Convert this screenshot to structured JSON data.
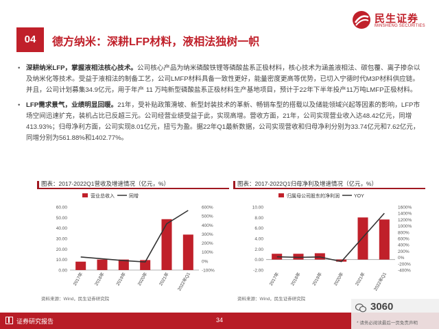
{
  "brand": {
    "cn": "民生证券",
    "en": "MINSHENG SECURITIES",
    "color": "#c0202a"
  },
  "section": {
    "number": "04",
    "title": "德方纳米：深耕LFP材料，液相法独树一帜"
  },
  "bullets": [
    {
      "lead": "深耕纳米LFP，掌握液相法核心技术。",
      "text": "公司核心产品为纳米磷酸铁锂等磷酸盐系正极材料，核心技术为涵盖液相法、碳包覆、离子掺杂以及纳米化等技术。受益于液相法的制备工艺，公司LMFP材料具备一致性更好，能量密度更高等优势，已切入宁德时代M3P材料供应链。并且，公司计划募集34.9亿元，用于年产 11 万吨新型磷酸盐系正极材料生产基地项目，预计于22年下半年投产11万吨LMFP正极材料。"
    },
    {
      "lead": "LFP需求景气，业绩明显回暖。",
      "text": "21年，受补贴政策滑坡、新型封装技术的革新、畅销车型的搭载以及储能领域兴起等因素的影响，LFP市场空间迅速扩充，装机占比已反超三元。公司经营业绩受益于此，实现高增。营收方面，21年，公司实现营业收入达48.42亿元，同增413.93%；归母净利方面，公司实现8.01亿元，扭亏为盈。据22年Q1最新数据，公司实现营收和归母净利分别为33.74亿元和7.62亿元，同增分别为561.88%和1402.77%。"
    }
  ],
  "chart_data": [
    {
      "type": "bar",
      "title": "图表：2017-2022Q1营收及增速情况（亿元，%）",
      "categories": [
        "2017年",
        "2018年",
        "2019年",
        "2020年",
        "2021年",
        "2022年Q1"
      ],
      "series": [
        {
          "name": "营业总收入",
          "type": "bar",
          "axis": "left",
          "values": [
            8.0,
            10.0,
            10.0,
            9.5,
            48.42,
            33.74
          ]
        },
        {
          "name": "同增",
          "type": "line",
          "axis": "right",
          "values": [
            45,
            25,
            5,
            -10,
            413.93,
            561.88
          ]
        }
      ],
      "y_left": {
        "min": 0,
        "max": 60,
        "ticks": [
          "0.00",
          "10.00",
          "20.00",
          "30.00",
          "40.00",
          "50.00",
          "60.00"
        ]
      },
      "y_right": {
        "min": -100,
        "max": 600,
        "ticks": [
          "-100%",
          "0%",
          "100%",
          "200%",
          "300%",
          "400%",
          "500%",
          "600%"
        ]
      },
      "legend": "top",
      "source": "资料来源：Wind，民生证券研究院"
    },
    {
      "type": "bar",
      "title": "图表：2017-2022Q1归母净利及增速情况（亿元，%）",
      "categories": [
        "2017年",
        "2018年",
        "2019年",
        "2020年",
        "2021年",
        "2022年Q1"
      ],
      "series": [
        {
          "name": "归属母公司股东的净利润",
          "type": "bar",
          "axis": "left",
          "values": [
            1.1,
            1.1,
            1.2,
            -0.4,
            8.01,
            7.62
          ]
        },
        {
          "name": "YOY",
          "type": "line",
          "axis": "right",
          "values": [
            20,
            5,
            15,
            -130,
            null,
            1402.77
          ]
        }
      ],
      "y_left": {
        "min": -2,
        "max": 10,
        "ticks": [
          "-2.00",
          "0.00",
          "2.00",
          "4.00",
          "6.00",
          "8.00",
          "10.00"
        ]
      },
      "y_right": {
        "min": -400,
        "max": 1600,
        "ticks": [
          "-400%",
          "-200%",
          "0%",
          "200%",
          "400%",
          "600%",
          "800%",
          "1000%",
          "1200%",
          "1400%",
          "1600%"
        ]
      },
      "legend": "top",
      "source": "资料来源：Wind，民生证券研究院"
    }
  ],
  "footer": {
    "label": "证券研究报告",
    "page": "34"
  },
  "watermark": {
    "text": "3060",
    "disclaimer": "* 请务必阅读最后一页免责声明"
  }
}
